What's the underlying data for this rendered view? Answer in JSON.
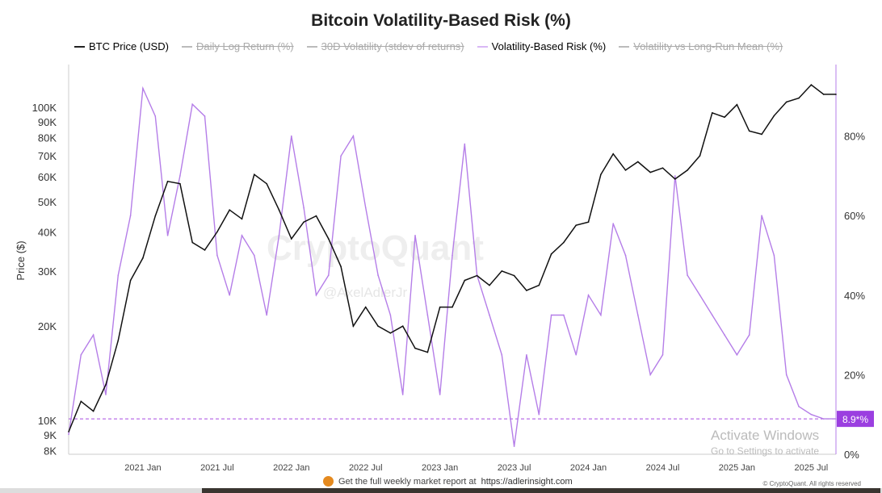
{
  "chart_data": {
    "type": "line",
    "title": "Bitcoin Volatility-Based Risk (%)",
    "ylabel": "Price ($)",
    "y_scale": "log",
    "ylim": [
      8000,
      130000
    ],
    "y2lim": [
      0,
      98
    ],
    "yticks": [
      "8K",
      "9K",
      "10K",
      "20K",
      "30K",
      "40K",
      "50K",
      "60K",
      "70K",
      "80K",
      "90K",
      "100K"
    ],
    "ytick_values": [
      8000,
      9000,
      10000,
      20000,
      30000,
      40000,
      50000,
      60000,
      70000,
      80000,
      90000,
      100000
    ],
    "y2ticks": [
      "0%",
      "20%",
      "40%",
      "60%",
      "80%"
    ],
    "y2tick_values": [
      0,
      20,
      40,
      60,
      80
    ],
    "xticks": [
      "2021 Jan",
      "2021 Jul",
      "2022 Jan",
      "2022 Jul",
      "2023 Jan",
      "2023 Jul",
      "2024 Jan",
      "2024 Jul",
      "2025 Jan",
      "2025 Jul"
    ],
    "xtick_values": [
      "2021-01",
      "2021-07",
      "2022-01",
      "2022-07",
      "2023-01",
      "2023-07",
      "2024-01",
      "2024-07",
      "2025-01",
      "2025-07"
    ],
    "xlim": [
      "2020-07",
      "2025-09"
    ],
    "grid": false,
    "legend": [
      {
        "name": "BTC Price (USD)",
        "color": "#222222",
        "enabled": true
      },
      {
        "name": "Daily Log Return (%)",
        "color": "#bbbbbb",
        "enabled": false
      },
      {
        "name": "30D Volatility (stdev of returns)",
        "color": "#bbbbbb",
        "enabled": false
      },
      {
        "name": "Volatility-Based Risk (%)",
        "color": "#b57ee8",
        "enabled": true
      },
      {
        "name": "Volatility vs Long-Run Mean (%)",
        "color": "#bbbbbb",
        "enabled": false
      }
    ],
    "legend_position": "top",
    "x": [
      "2020-07",
      "2020-08",
      "2020-09",
      "2020-10",
      "2020-11",
      "2020-12",
      "2021-01",
      "2021-02",
      "2021-03",
      "2021-04",
      "2021-05",
      "2021-06",
      "2021-07",
      "2021-08",
      "2021-09",
      "2021-10",
      "2021-11",
      "2021-12",
      "2022-01",
      "2022-02",
      "2022-03",
      "2022-04",
      "2022-05",
      "2022-06",
      "2022-07",
      "2022-08",
      "2022-09",
      "2022-10",
      "2022-11",
      "2022-12",
      "2023-01",
      "2023-02",
      "2023-03",
      "2023-04",
      "2023-05",
      "2023-06",
      "2023-07",
      "2023-08",
      "2023-09",
      "2023-10",
      "2023-11",
      "2023-12",
      "2024-01",
      "2024-02",
      "2024-03",
      "2024-04",
      "2024-05",
      "2024-06",
      "2024-07",
      "2024-08",
      "2024-09",
      "2024-10",
      "2024-11",
      "2024-12",
      "2025-01",
      "2025-02",
      "2025-03",
      "2025-04",
      "2025-05",
      "2025-06",
      "2025-07",
      "2025-08",
      "2025-09"
    ],
    "series": [
      {
        "name": "BTC Price (USD)",
        "axis": "left",
        "color": "#111111",
        "values": [
          9200,
          11500,
          10700,
          13000,
          18000,
          28000,
          33000,
          45000,
          58000,
          57000,
          37000,
          35000,
          40000,
          47000,
          44000,
          61000,
          57000,
          47000,
          38000,
          43000,
          45000,
          38000,
          31000,
          20000,
          23000,
          20000,
          19000,
          20000,
          17000,
          16500,
          23000,
          23000,
          28000,
          29000,
          27000,
          30000,
          29000,
          26000,
          27000,
          34000,
          37000,
          42000,
          43000,
          61000,
          71000,
          63000,
          67000,
          62000,
          64000,
          59000,
          63000,
          70000,
          96000,
          93000,
          102000,
          84000,
          82000,
          94000,
          104000,
          107000,
          118000,
          110000,
          110000
        ]
      },
      {
        "name": "Volatility-Based Risk (%)",
        "axis": "right",
        "color": "#b57ee8",
        "values": [
          5,
          25,
          30,
          15,
          45,
          60,
          92,
          85,
          55,
          70,
          88,
          85,
          50,
          40,
          55,
          50,
          35,
          55,
          80,
          62,
          40,
          45,
          75,
          80,
          62,
          45,
          35,
          15,
          55,
          35,
          15,
          50,
          78,
          45,
          35,
          25,
          2,
          25,
          10,
          35,
          35,
          25,
          40,
          35,
          58,
          50,
          35,
          20,
          25,
          70,
          45,
          40,
          35,
          30,
          25,
          30,
          60,
          50,
          20,
          12,
          10,
          8.9,
          8.9
        ]
      }
    ],
    "current_value_label": "8.9*%",
    "current_value": 8.9
  },
  "watermark": "CryptoQuant",
  "watermark_handle": "@AxelAdlerJr",
  "footer": {
    "text": "Get the full weekly market report at",
    "link": "https://adlerinsight.com",
    "copyright": "© CryptoQuant. All rights reserved"
  },
  "os_overlay": {
    "line1": "Activate Windows",
    "line2": "Go to Settings to activate"
  }
}
